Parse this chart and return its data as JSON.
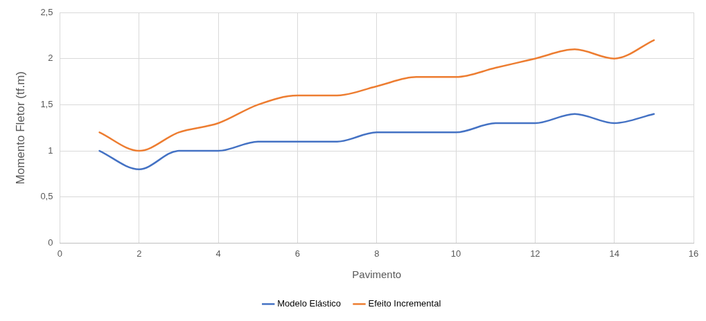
{
  "chart_data": {
    "type": "line",
    "xlabel": "Pavimento",
    "ylabel": "Momento Fletor (tf.m)",
    "x": [
      1,
      2,
      3,
      4,
      5,
      6,
      7,
      8,
      9,
      10,
      11,
      12,
      13,
      14,
      15
    ],
    "series": [
      {
        "name": "Modelo Elástico",
        "color": "#4472c4",
        "values": [
          1.0,
          0.8,
          1.0,
          1.0,
          1.1,
          1.1,
          1.1,
          1.2,
          1.2,
          1.2,
          1.3,
          1.3,
          1.4,
          1.3,
          1.4
        ]
      },
      {
        "name": "Efeito Incremental",
        "color": "#ed7d31",
        "values": [
          1.2,
          1.0,
          1.2,
          1.3,
          1.5,
          1.6,
          1.6,
          1.7,
          1.8,
          1.8,
          1.9,
          2.0,
          2.1,
          2.0,
          2.2
        ]
      }
    ],
    "xlim": [
      0,
      16
    ],
    "xticks": [
      0,
      2,
      4,
      6,
      8,
      10,
      12,
      14,
      16
    ],
    "ylim": [
      0,
      2.5
    ],
    "yticks": [
      0,
      {
        "value": 0.5,
        "label": "0,5"
      },
      1,
      {
        "value": 1.5,
        "label": "1,5"
      },
      2,
      {
        "value": 2.5,
        "label": "2,5"
      }
    ],
    "grid": true,
    "legend": "bottom",
    "marker": "none"
  }
}
